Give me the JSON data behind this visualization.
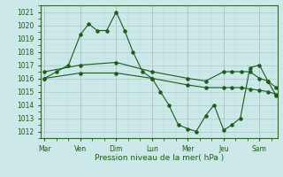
{
  "title": "",
  "xlabel": "Pression niveau de la mer( hPa )",
  "bg_color": "#cce8e8",
  "grid_color_major": "#aacccc",
  "grid_color_minor": "#bbdddd",
  "line_color": "#1a5c1a",
  "spine_color": "#336633",
  "tick_color": "#cc9999",
  "x_tick_labels": [
    "Mar",
    "Ven",
    "Dim",
    "Lun",
    "Mer",
    "Jeu",
    "Sam"
  ],
  "x_tick_positions": [
    0,
    3,
    6,
    9,
    12,
    15,
    18
  ],
  "ylim": [
    1011.5,
    1021.5
  ],
  "yticks": [
    1012,
    1013,
    1014,
    1015,
    1016,
    1017,
    1018,
    1019,
    1020,
    1021
  ],
  "xlim": [
    -0.3,
    19.5
  ],
  "series1_x": [
    0,
    1,
    2,
    3,
    3.7,
    4.4,
    5.2,
    6,
    6.7,
    7.4,
    8.2,
    9,
    9.7,
    10.4,
    11.2,
    12,
    12.7,
    13.5,
    14.2,
    15,
    15.7,
    16.4,
    17.2,
    18,
    18.7,
    19.4
  ],
  "series1_y": [
    1016.0,
    1016.5,
    1017.0,
    1019.3,
    1020.1,
    1019.6,
    1019.6,
    1021.0,
    1019.6,
    1018.0,
    1016.5,
    1016.0,
    1015.0,
    1014.0,
    1012.5,
    1012.2,
    1012.0,
    1013.2,
    1014.0,
    1012.1,
    1012.5,
    1013.0,
    1016.8,
    1017.0,
    1015.8,
    1014.7
  ],
  "series2_x": [
    0,
    3,
    6,
    9,
    12,
    13.5,
    15,
    15.7,
    16.5,
    17.2,
    18,
    18.7,
    19.4
  ],
  "series2_y": [
    1016.5,
    1017.0,
    1017.2,
    1016.5,
    1016.0,
    1015.8,
    1016.5,
    1016.5,
    1016.5,
    1016.5,
    1016.0,
    1015.8,
    1015.3
  ],
  "series3_x": [
    0,
    3,
    6,
    9,
    12,
    13.5,
    15,
    15.7,
    16.5,
    17.2,
    18,
    18.7,
    19.4
  ],
  "series3_y": [
    1016.0,
    1016.4,
    1016.4,
    1016.0,
    1015.5,
    1015.3,
    1015.3,
    1015.3,
    1015.3,
    1015.2,
    1015.1,
    1015.0,
    1014.8
  ]
}
